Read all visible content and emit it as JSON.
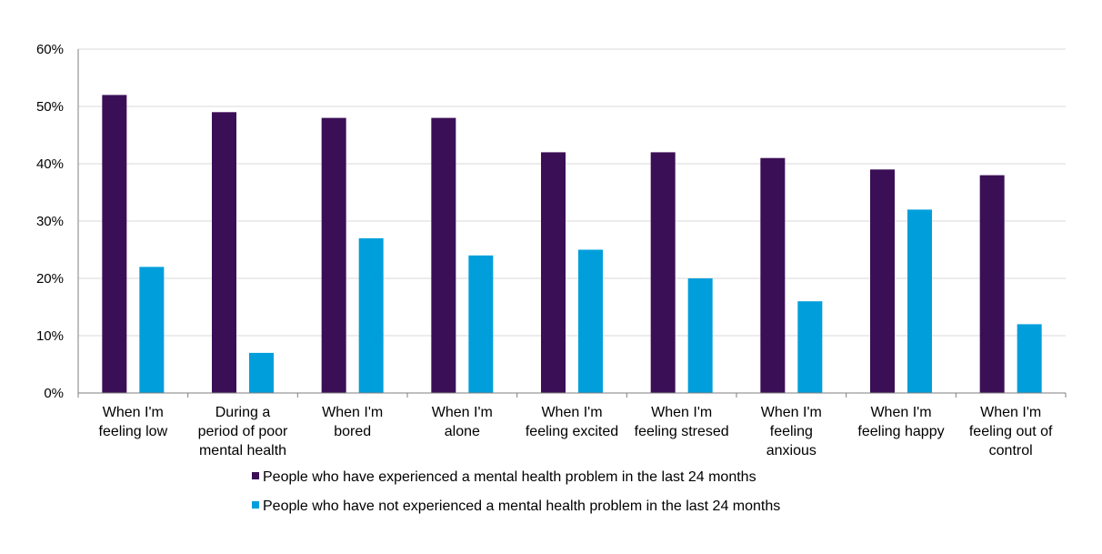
{
  "chart_data": {
    "type": "bar",
    "categories": [
      [
        "When I'm",
        "feeling low"
      ],
      [
        "During a",
        "period of poor",
        "mental health"
      ],
      [
        "When I'm",
        "bored"
      ],
      [
        "When I'm",
        "alone"
      ],
      [
        "When I'm",
        "feeling excited"
      ],
      [
        "When I'm",
        "feeling stresed"
      ],
      [
        "When I'm",
        "feeling",
        "anxious"
      ],
      [
        "When I'm",
        "feeling happy"
      ],
      [
        "When I'm",
        "feeling out of",
        "control"
      ]
    ],
    "series": [
      {
        "name": "People who have experienced a mental health problem in the last 24 months",
        "color": "#3b0f56",
        "values": [
          52,
          49,
          48,
          48,
          42,
          42,
          41,
          39,
          38
        ]
      },
      {
        "name": "People who have not experienced a mental health problem in the last 24 months",
        "color": "#009fdb",
        "values": [
          22,
          7,
          27,
          24,
          25,
          20,
          16,
          32,
          12
        ]
      }
    ],
    "y_ticks": [
      "0%",
      "10%",
      "20%",
      "30%",
      "40%",
      "50%",
      "60%"
    ],
    "ylim": [
      0,
      60
    ],
    "grid": true,
    "legend_position": "bottom",
    "title": "",
    "xlabel": "",
    "ylabel": ""
  }
}
